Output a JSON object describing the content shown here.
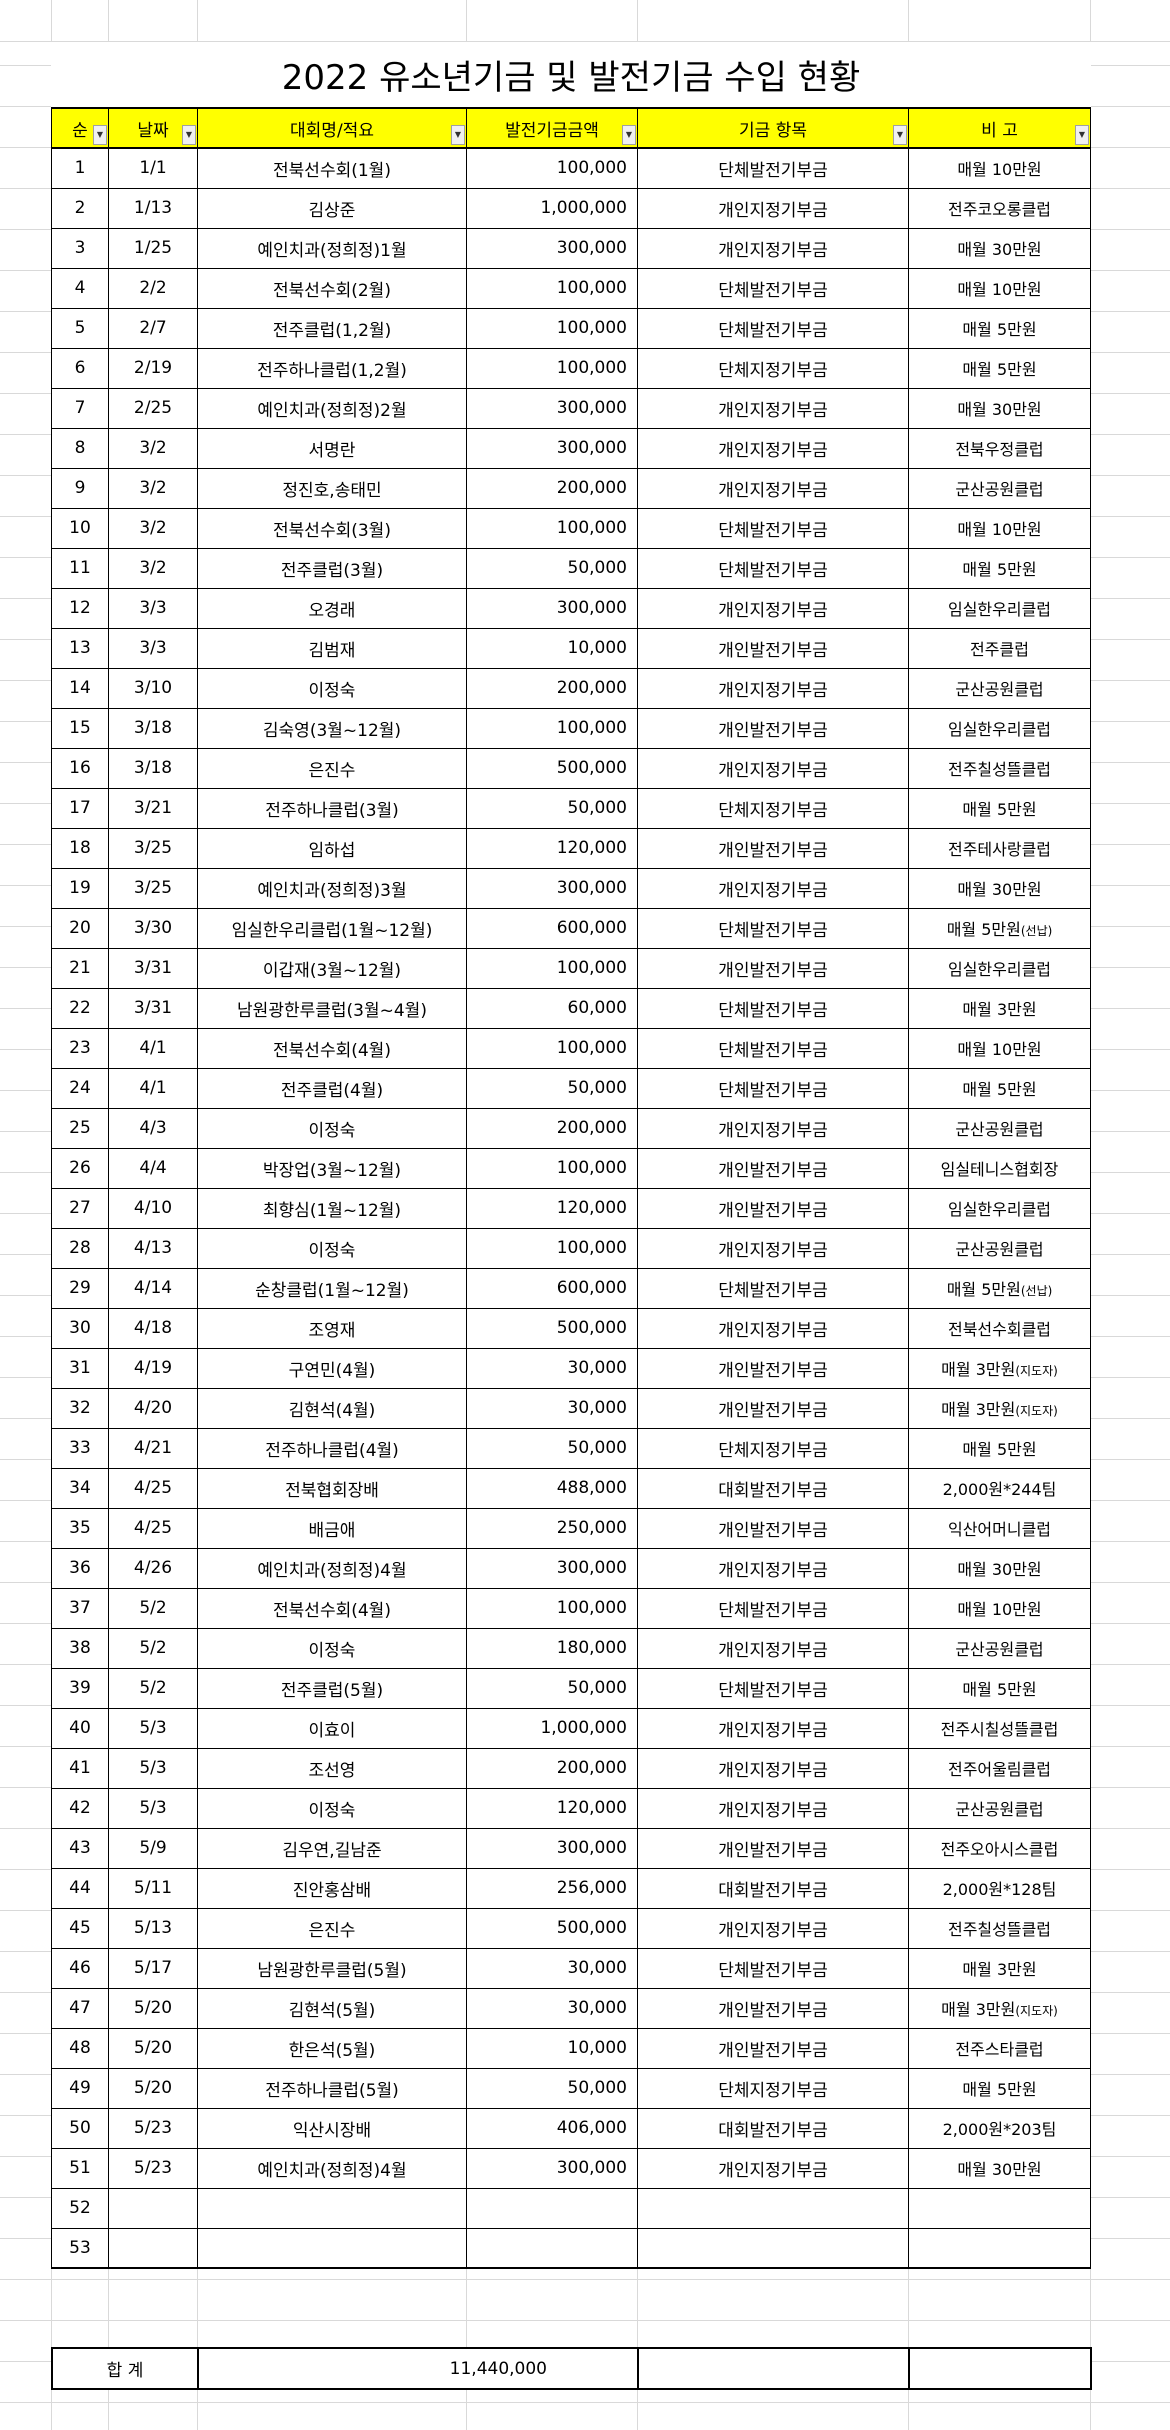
{
  "title": "2022 유소년기금 및 발전기금 수입 현황",
  "header_color": "#ffff00",
  "columns": [
    "순",
    "날짜",
    "대회명/적요",
    "발전기금금액",
    "기금 항목",
    "비 고"
  ],
  "filter_icon": "dropdown-arrow-icon",
  "rows": [
    [
      "1",
      "1/1",
      "전북선수회(1월)",
      "100,000",
      "단체발전기부금",
      "매월 10만원",
      ""
    ],
    [
      "2",
      "1/13",
      "김상준",
      "1,000,000",
      "개인지정기부금",
      "전주코오롱클럽",
      ""
    ],
    [
      "3",
      "1/25",
      "예인치과(정희정)1월",
      "300,000",
      "개인지정기부금",
      "매월 30만원",
      ""
    ],
    [
      "4",
      "2/2",
      "전북선수회(2월)",
      "100,000",
      "단체발전기부금",
      "매월 10만원",
      ""
    ],
    [
      "5",
      "2/7",
      "전주클럽(1,2월)",
      "100,000",
      "단체발전기부금",
      "매월 5만원",
      ""
    ],
    [
      "6",
      "2/19",
      "전주하나클럽(1,2월)",
      "100,000",
      "단체지정기부금",
      "매월 5만원",
      ""
    ],
    [
      "7",
      "2/25",
      "예인치과(정희정)2월",
      "300,000",
      "개인지정기부금",
      "매월 30만원",
      ""
    ],
    [
      "8",
      "3/2",
      "서명란",
      "300,000",
      "개인지정기부금",
      "전북우정클럽",
      ""
    ],
    [
      "9",
      "3/2",
      "정진호,송태민",
      "200,000",
      "개인지정기부금",
      "군산공원클럽",
      ""
    ],
    [
      "10",
      "3/2",
      "전북선수회(3월)",
      "100,000",
      "단체발전기부금",
      "매월 10만원",
      ""
    ],
    [
      "11",
      "3/2",
      "전주클럽(3월)",
      "50,000",
      "단체발전기부금",
      "매월 5만원",
      ""
    ],
    [
      "12",
      "3/3",
      "오경래",
      "300,000",
      "개인지정기부금",
      "임실한우리클럽",
      ""
    ],
    [
      "13",
      "3/3",
      "김범재",
      "10,000",
      "개인발전기부금",
      "전주클럽",
      ""
    ],
    [
      "14",
      "3/10",
      "이정숙",
      "200,000",
      "개인지정기부금",
      "군산공원클럽",
      ""
    ],
    [
      "15",
      "3/18",
      "김숙영(3월~12월)",
      "100,000",
      "개인발전기부금",
      "임실한우리클럽",
      ""
    ],
    [
      "16",
      "3/18",
      "은진수",
      "500,000",
      "개인지정기부금",
      "전주칠성뜰클럽",
      ""
    ],
    [
      "17",
      "3/21",
      "전주하나클럽(3월)",
      "50,000",
      "단체지정기부금",
      "매월 5만원",
      ""
    ],
    [
      "18",
      "3/25",
      "임하섭",
      "120,000",
      "개인발전기부금",
      "전주테사랑클럽",
      ""
    ],
    [
      "19",
      "3/25",
      "예인치과(정희정)3월",
      "300,000",
      "개인지정기부금",
      "매월 30만원",
      ""
    ],
    [
      "20",
      "3/30",
      "임실한우리클럽(1월~12월)",
      "600,000",
      "단체발전기부금",
      "매월 5만원",
      "(선납)"
    ],
    [
      "21",
      "3/31",
      "이갑재(3월~12월)",
      "100,000",
      "개인발전기부금",
      "임실한우리클럽",
      ""
    ],
    [
      "22",
      "3/31",
      "남원광한루클럽(3월~4월)",
      "60,000",
      "단체발전기부금",
      "매월 3만원",
      ""
    ],
    [
      "23",
      "4/1",
      "전북선수회(4월)",
      "100,000",
      "단체발전기부금",
      "매월 10만원",
      ""
    ],
    [
      "24",
      "4/1",
      "전주클럽(4월)",
      "50,000",
      "단체발전기부금",
      "매월 5만원",
      ""
    ],
    [
      "25",
      "4/3",
      "이정숙",
      "200,000",
      "개인지정기부금",
      "군산공원클럽",
      ""
    ],
    [
      "26",
      "4/4",
      "박장업(3월~12월)",
      "100,000",
      "개인발전기부금",
      "임실테니스협회장",
      ""
    ],
    [
      "27",
      "4/10",
      "최향심(1월~12월)",
      "120,000",
      "개인발전기부금",
      "임실한우리클럽",
      ""
    ],
    [
      "28",
      "4/13",
      "이정숙",
      "100,000",
      "개인지정기부금",
      "군산공원클럽",
      ""
    ],
    [
      "29",
      "4/14",
      "순창클럽(1월~12월)",
      "600,000",
      "단체발전기부금",
      "매월 5만원",
      "(선납)"
    ],
    [
      "30",
      "4/18",
      "조영재",
      "500,000",
      "개인지정기부금",
      "전북선수회클럽",
      ""
    ],
    [
      "31",
      "4/19",
      "구연민(4월)",
      "30,000",
      "개인발전기부금",
      "매월 3만원",
      "(지도자)"
    ],
    [
      "32",
      "4/20",
      "김현석(4월)",
      "30,000",
      "개인발전기부금",
      "매월 3만원",
      "(지도자)"
    ],
    [
      "33",
      "4/21",
      "전주하나클럽(4월)",
      "50,000",
      "단체지정기부금",
      "매월 5만원",
      ""
    ],
    [
      "34",
      "4/25",
      "전북협회장배",
      "488,000",
      "대회발전기부금",
      "2,000원*244팀",
      ""
    ],
    [
      "35",
      "4/25",
      "배금애",
      "250,000",
      "개인발전기부금",
      "익산어머니클럽",
      ""
    ],
    [
      "36",
      "4/26",
      "예인치과(정희정)4월",
      "300,000",
      "개인지정기부금",
      "매월 30만원",
      ""
    ],
    [
      "37",
      "5/2",
      "전북선수회(4월)",
      "100,000",
      "단체발전기부금",
      "매월 10만원",
      ""
    ],
    [
      "38",
      "5/2",
      "이정숙",
      "180,000",
      "개인지정기부금",
      "군산공원클럽",
      ""
    ],
    [
      "39",
      "5/2",
      "전주클럽(5월)",
      "50,000",
      "단체발전기부금",
      "매월 5만원",
      ""
    ],
    [
      "40",
      "5/3",
      "이효이",
      "1,000,000",
      "개인지정기부금",
      "전주시칠성뜰클럽",
      ""
    ],
    [
      "41",
      "5/3",
      "조선영",
      "200,000",
      "개인지정기부금",
      "전주어울림클럽",
      ""
    ],
    [
      "42",
      "5/3",
      "이정숙",
      "120,000",
      "개인지정기부금",
      "군산공원클럽",
      ""
    ],
    [
      "43",
      "5/9",
      "김우연,길남준",
      "300,000",
      "개인발전기부금",
      "전주오아시스클럽",
      ""
    ],
    [
      "44",
      "5/11",
      "진안홍삼배",
      "256,000",
      "대회발전기부금",
      "2,000원*128팀",
      ""
    ],
    [
      "45",
      "5/13",
      "은진수",
      "500,000",
      "개인지정기부금",
      "전주칠성뜰클럽",
      ""
    ],
    [
      "46",
      "5/17",
      "남원광한루클럽(5월)",
      "30,000",
      "단체발전기부금",
      "매월 3만원",
      ""
    ],
    [
      "47",
      "5/20",
      "김현석(5월)",
      "30,000",
      "개인발전기부금",
      "매월 3만원",
      "(지도자)"
    ],
    [
      "48",
      "5/20",
      "한은석(5월)",
      "10,000",
      "개인발전기부금",
      "전주스타클럽",
      ""
    ],
    [
      "49",
      "5/20",
      "전주하나클럽(5월)",
      "50,000",
      "단체지정기부금",
      "매월 5만원",
      ""
    ],
    [
      "50",
      "5/23",
      "익산시장배",
      "406,000",
      "대회발전기부금",
      "2,000원*203팀",
      ""
    ],
    [
      "51",
      "5/23",
      "예인치과(정희정)4월",
      "300,000",
      "개인지정기부금",
      "매월 30만원",
      ""
    ],
    [
      "52",
      "",
      "",
      "",
      "",
      "",
      ""
    ],
    [
      "53",
      "",
      "",
      "",
      "",
      "",
      ""
    ]
  ],
  "total": {
    "label": "합 계",
    "amount": "11,440,000"
  }
}
